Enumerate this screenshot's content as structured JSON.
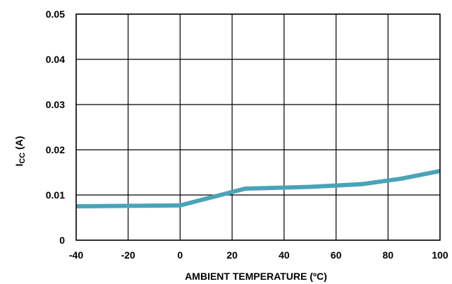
{
  "chart_data": {
    "type": "line",
    "xlabel": "AMBIENT TEMPERATURE (ºC)",
    "ylabel": {
      "main": "I",
      "subscript": "CC",
      "suffix": " (A)"
    },
    "xlim": [
      -40,
      100
    ],
    "ylim": [
      0,
      0.05
    ],
    "x_ticks": [
      -40,
      -20,
      0,
      20,
      40,
      60,
      80,
      100
    ],
    "x_tick_labels": [
      "-40",
      "-20",
      "0",
      "20",
      "40",
      "60",
      "80",
      "100"
    ],
    "y_ticks": [
      0,
      0.01,
      0.02,
      0.03,
      0.04,
      0.05
    ],
    "y_tick_labels": [
      "0",
      "0.01",
      "0.02",
      "0.03",
      "0.04",
      "0.05"
    ],
    "grid": true,
    "series": [
      {
        "color": "#4aa3b8",
        "x": [
          -40,
          -20,
          0,
          25,
          50,
          70,
          85,
          100
        ],
        "y": [
          0.0075,
          0.0076,
          0.0077,
          0.0114,
          0.0118,
          0.0124,
          0.0136,
          0.0153
        ]
      }
    ]
  }
}
